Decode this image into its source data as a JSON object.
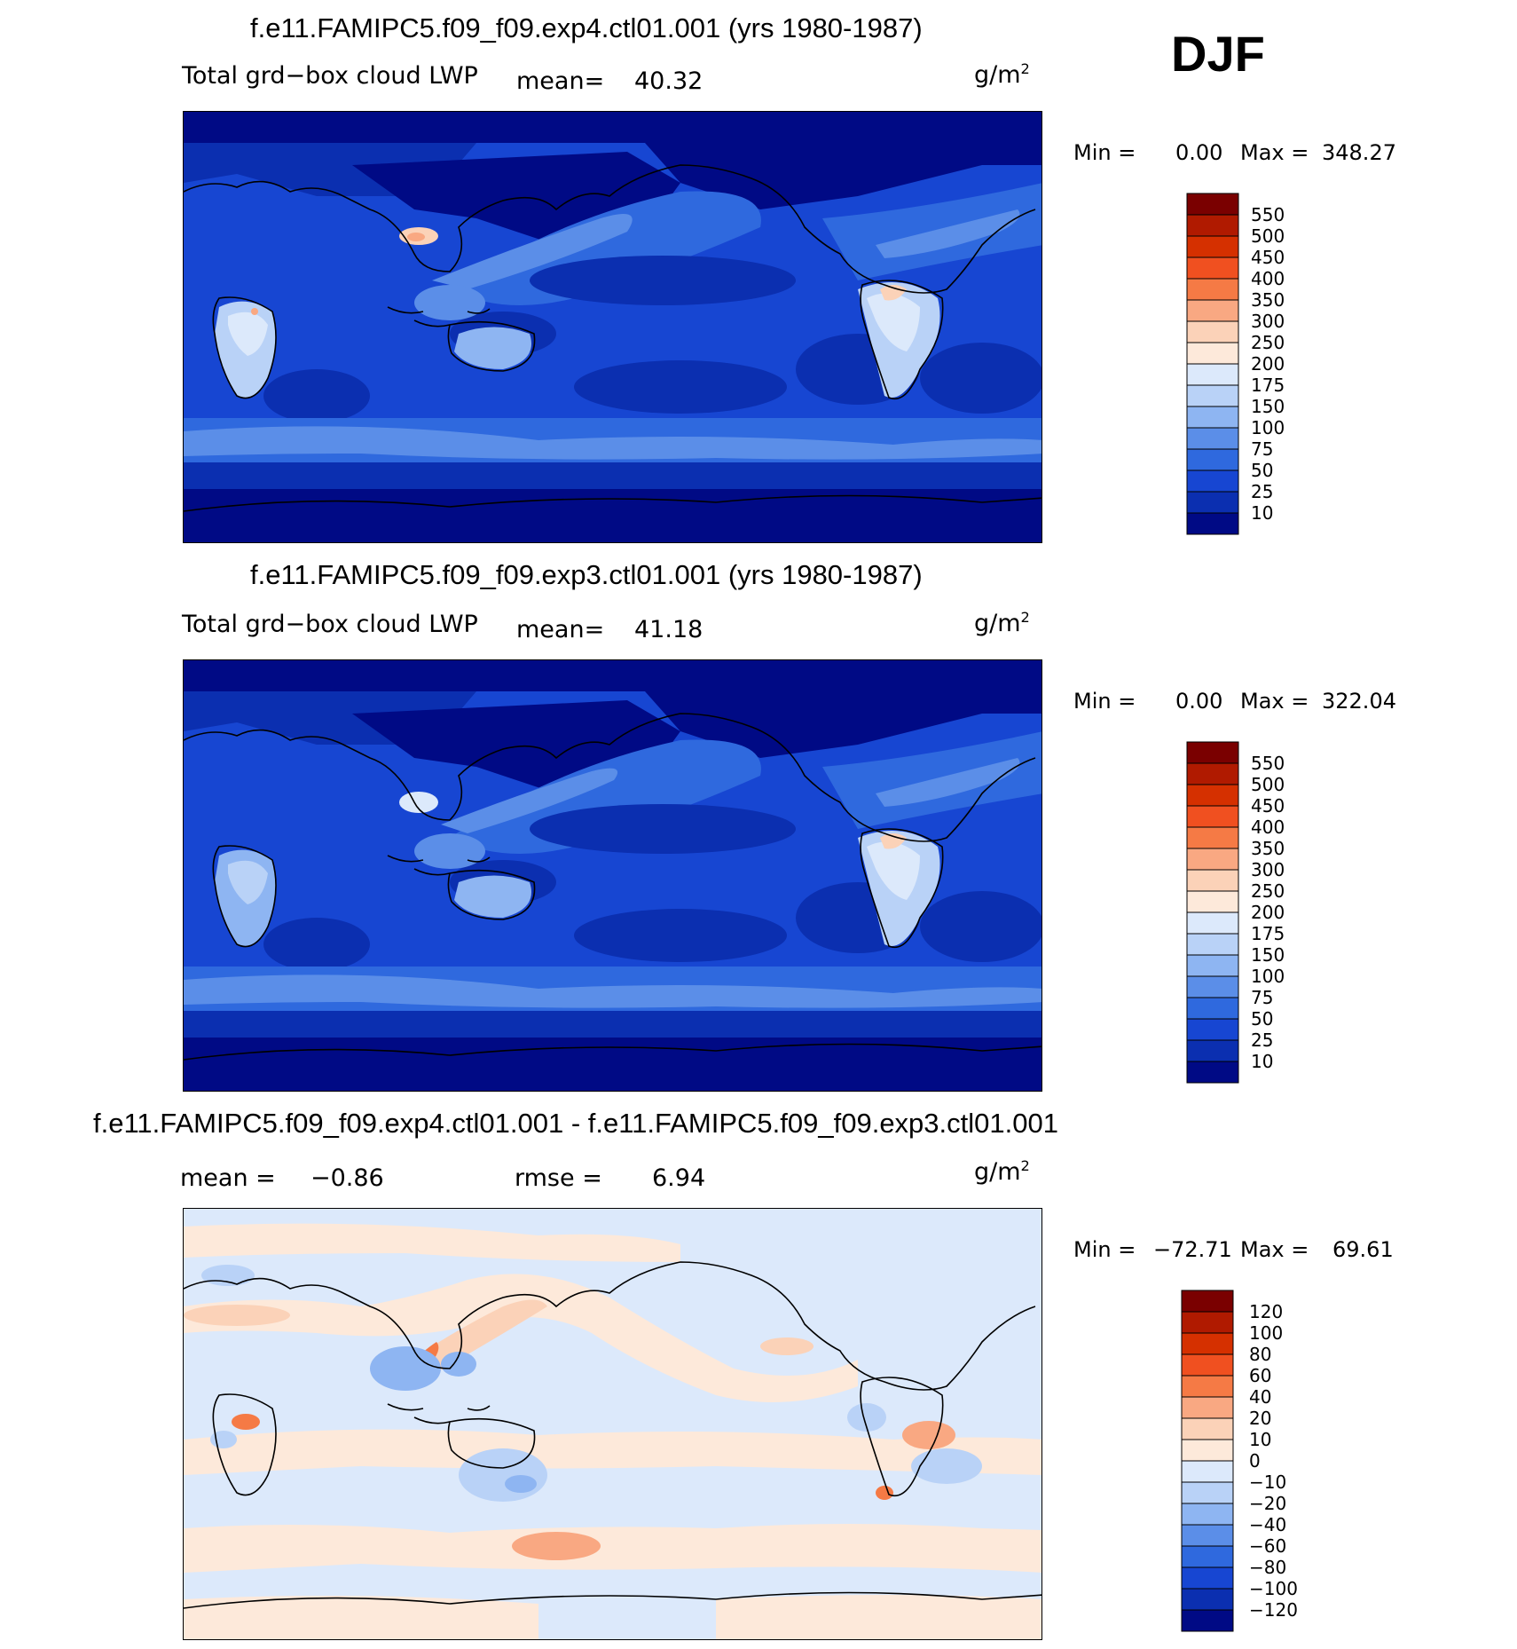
{
  "season": "DJF",
  "panels": [
    {
      "title": "f.e11.FAMIPC5.f09_f09.exp4.ctl01.001 (yrs 1980-1987)",
      "variable": "Total grd−box cloud LWP",
      "mean_label": "mean=",
      "mean_value": "40.32",
      "units": "g/m",
      "units_sup": "2",
      "min_label": "Min  =",
      "min_value": "0.00",
      "max_label": "Max  =",
      "max_value": "348.27",
      "colorbar": {
        "levels": [
          "550",
          "500",
          "450",
          "400",
          "350",
          "300",
          "250",
          "200",
          "175",
          "150",
          "100",
          "75",
          "50",
          "25",
          "10"
        ],
        "colors": [
          "#7a0000",
          "#b01a00",
          "#d53000",
          "#f05020",
          "#f57a45",
          "#f9a882",
          "#fbd2b8",
          "#fde9da",
          "#dce9fb",
          "#b9d2f7",
          "#8eb5f2",
          "#5b8ee8",
          "#2f69de",
          "#1746d2",
          "#0b2fb0",
          "#000a85"
        ]
      }
    },
    {
      "title": "f.e11.FAMIPC5.f09_f09.exp3.ctl01.001 (yrs 1980-1987)",
      "variable": "Total grd−box cloud LWP",
      "mean_label": "mean=",
      "mean_value": "41.18",
      "units": "g/m",
      "units_sup": "2",
      "min_label": "Min  =",
      "min_value": "0.00",
      "max_label": "Max  =",
      "max_value": "322.04",
      "colorbar": {
        "levels": [
          "550",
          "500",
          "450",
          "400",
          "350",
          "300",
          "250",
          "200",
          "175",
          "150",
          "100",
          "75",
          "50",
          "25",
          "10"
        ],
        "colors": [
          "#7a0000",
          "#b01a00",
          "#d53000",
          "#f05020",
          "#f57a45",
          "#f9a882",
          "#fbd2b8",
          "#fde9da",
          "#dce9fb",
          "#b9d2f7",
          "#8eb5f2",
          "#5b8ee8",
          "#2f69de",
          "#1746d2",
          "#0b2fb0",
          "#000a85"
        ]
      }
    },
    {
      "title": "f.e11.FAMIPC5.f09_f09.exp4.ctl01.001 - f.e11.FAMIPC5.f09_f09.exp3.ctl01.001",
      "mean_label": "mean  =",
      "mean_value": "−0.86",
      "rmse_label": "rmse  =",
      "rmse_value": "6.94",
      "units": "g/m",
      "units_sup": "2",
      "min_label": "Min  =",
      "min_value": "−72.71",
      "max_label": "Max  =",
      "max_value": "69.61",
      "colorbar": {
        "levels": [
          "120",
          "100",
          "80",
          "60",
          "40",
          "20",
          "10",
          "0",
          "−10",
          "−20",
          "−40",
          "−60",
          "−80",
          "−100",
          "−120"
        ],
        "colors": [
          "#7a0000",
          "#b01a00",
          "#d53000",
          "#f05020",
          "#f57a45",
          "#f9a882",
          "#fbd2b8",
          "#fde9da",
          "#dce9fb",
          "#b9d2f7",
          "#8eb5f2",
          "#5b8ee8",
          "#2f69de",
          "#1746d2",
          "#0b2fb0",
          "#000a85"
        ]
      }
    }
  ]
}
